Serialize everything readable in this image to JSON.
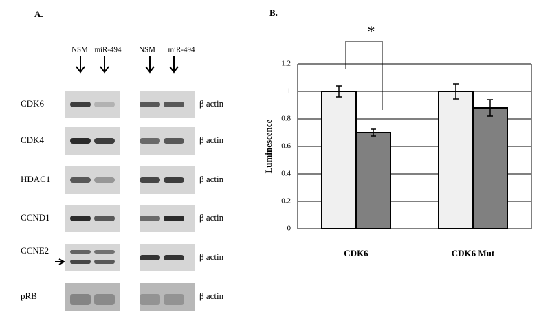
{
  "panel_a": {
    "title": "A.",
    "lanes": [
      "NSM",
      "miR-494",
      "NSM",
      "miR-494"
    ],
    "rows": [
      {
        "label": "CDK6",
        "control": "β actin"
      },
      {
        "label": "CDK4",
        "control": "β actin"
      },
      {
        "label": "HDAC1",
        "control": "β actin"
      },
      {
        "label": "CCND1",
        "control": "β actin"
      },
      {
        "label": "CCNE2",
        "control": "β actin"
      },
      {
        "label": "pRB",
        "control": "β actin"
      }
    ]
  },
  "chart_data": {
    "type": "bar",
    "title": "B.",
    "y_label": "Luminescence",
    "annotation": "*",
    "categories": [
      "CDK6",
      "CDK6 Mut"
    ],
    "series": [
      {
        "color": "#f0f0f0",
        "values": [
          1.0,
          1.0
        ],
        "errors": [
          0.04,
          0.055
        ]
      },
      {
        "color": "#808080",
        "values": [
          0.7,
          0.88
        ],
        "errors": [
          0.025,
          0.06
        ]
      }
    ],
    "ylim": [
      0,
      1.2
    ],
    "yticks": [
      0,
      0.2,
      0.4,
      0.6,
      0.8,
      1,
      1.2
    ],
    "grid": true
  }
}
